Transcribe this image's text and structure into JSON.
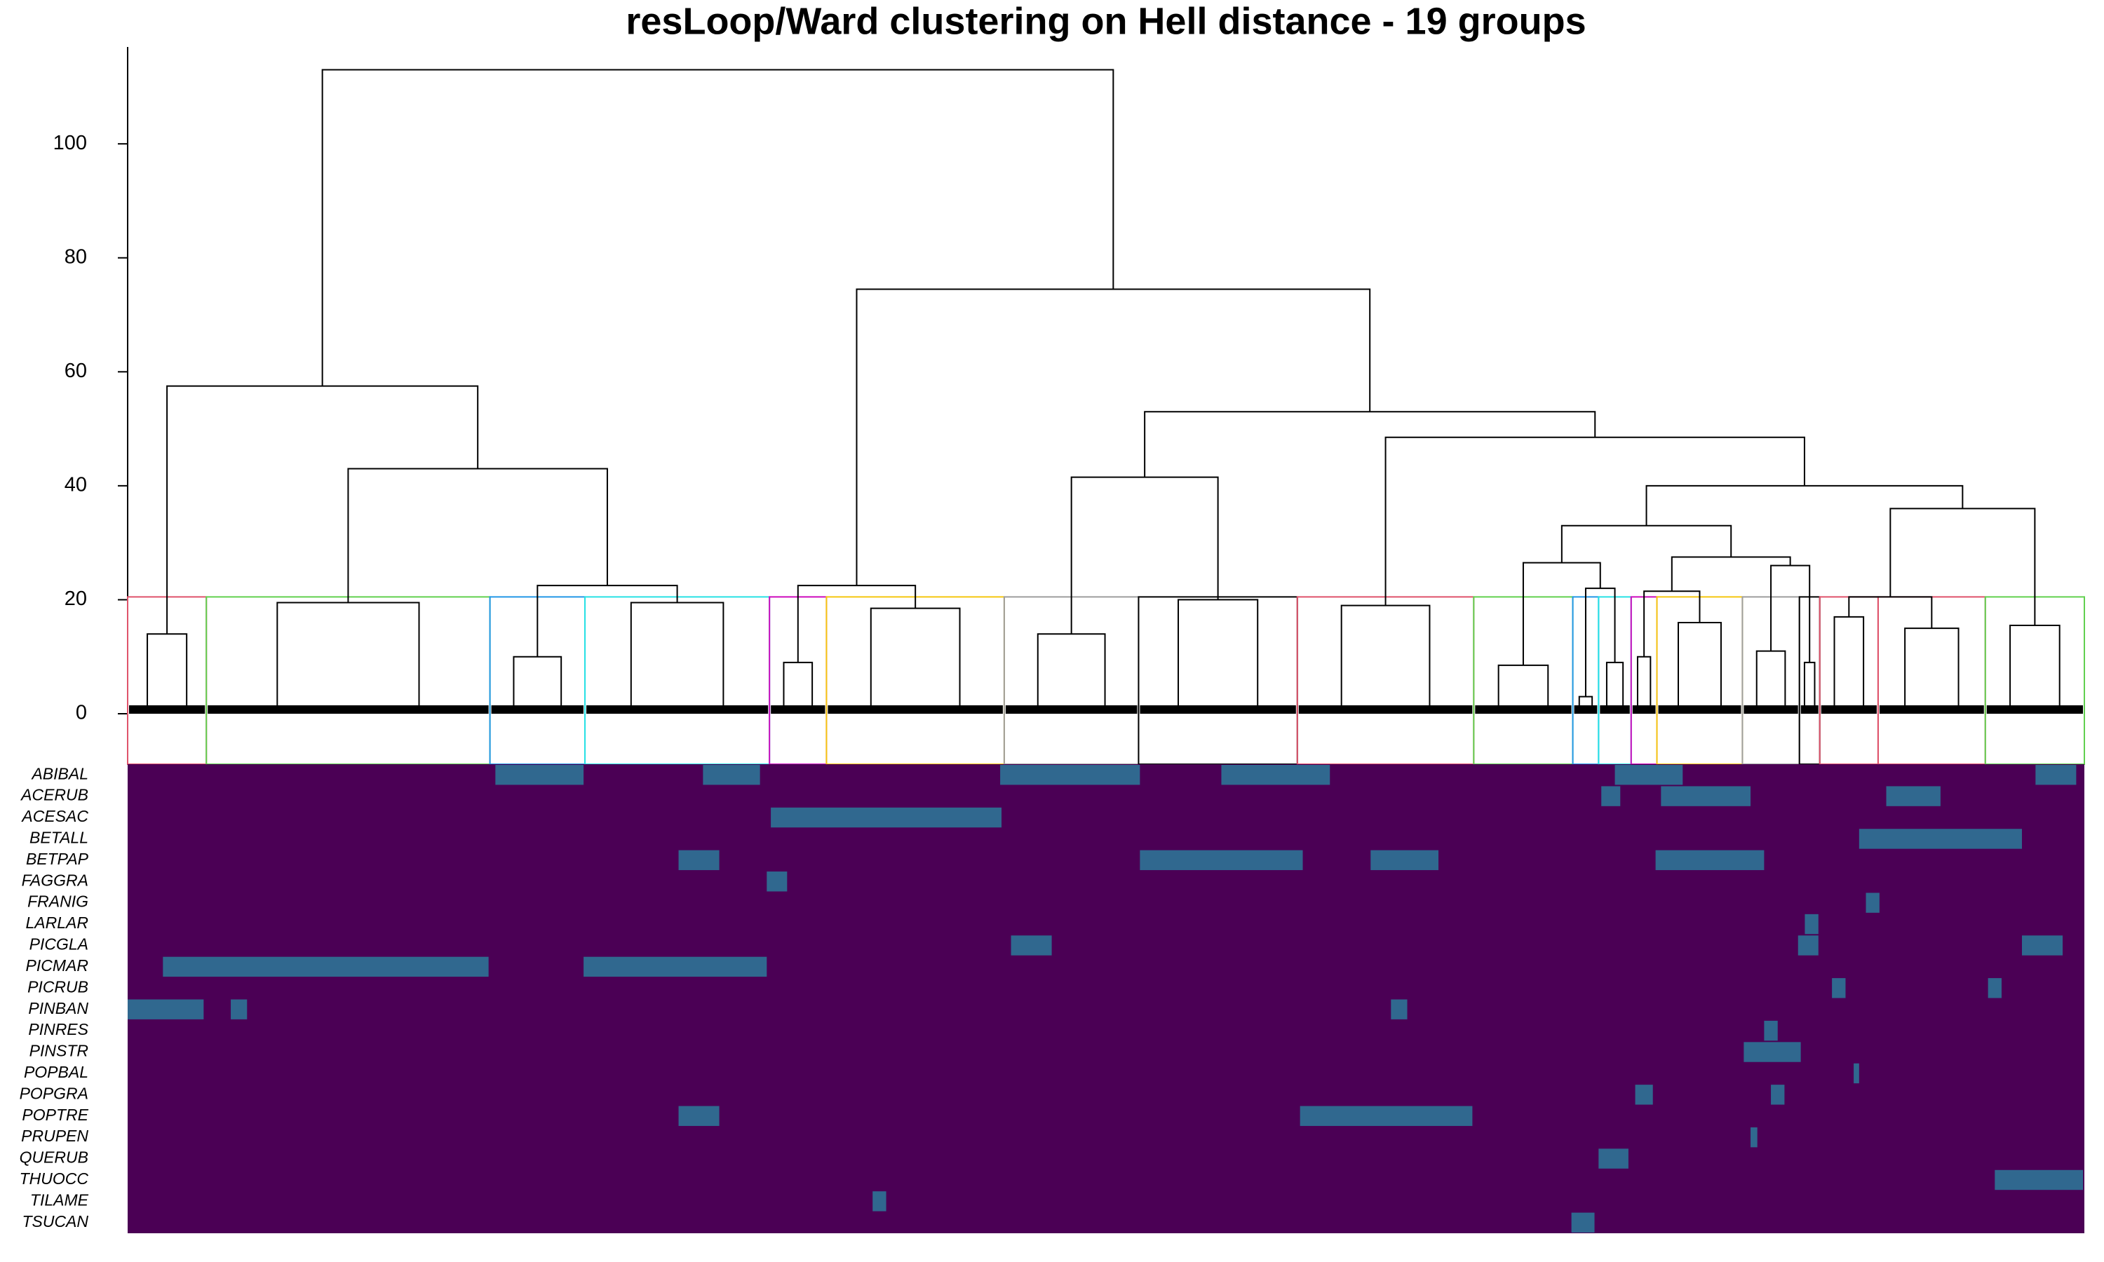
{
  "chart_data": {
    "type": "dendrogram",
    "title": "resLoop/Ward clustering on Hell distance - 19 groups",
    "ylim": [
      0,
      117
    ],
    "yticks": [
      0,
      20,
      40,
      60,
      80,
      100
    ],
    "cut_height": 20.5,
    "groups": [
      {
        "size": 58,
        "height": 14,
        "color": "#DF536B"
      },
      {
        "size": 209,
        "height": 19.5,
        "color": "#61D04F"
      },
      {
        "size": 70,
        "height": 10,
        "color": "#2297E6"
      },
      {
        "size": 136,
        "height": 19.5,
        "color": "#28E2E5"
      },
      {
        "size": 42,
        "height": 9,
        "color": "#CD0BBC"
      },
      {
        "size": 131,
        "height": 18.5,
        "color": "#F5C710"
      },
      {
        "size": 99,
        "height": 14,
        "color": "#9E9E9E"
      },
      {
        "size": 117,
        "height": 20,
        "color": "#000000"
      },
      {
        "size": 130,
        "height": 19,
        "color": "#DF536B"
      },
      {
        "size": 73,
        "height": 8.5,
        "color": "#61D04F"
      },
      {
        "size": 19,
        "height": 3,
        "color": "#2297E6"
      },
      {
        "size": 24,
        "height": 9,
        "color": "#28E2E5"
      },
      {
        "size": 19,
        "height": 10,
        "color": "#CD0BBC"
      },
      {
        "size": 63,
        "height": 16,
        "color": "#F5C710"
      },
      {
        "size": 42,
        "height": 11,
        "color": "#9E9E9E"
      },
      {
        "size": 15,
        "height": 9,
        "color": "#000000"
      },
      {
        "size": 43,
        "height": 17,
        "color": "#DF536B"
      },
      {
        "size": 79,
        "height": 15,
        "color": "#DF536B"
      },
      {
        "size": 73,
        "height": 15.5,
        "color": "#61D04F"
      }
    ],
    "merges": [
      {
        "left": 4,
        "right": 5,
        "height": 22.5
      },
      {
        "left": 2,
        "right": 3,
        "height": 22.5
      },
      {
        "left": 1,
        "right": 20,
        "height": 43
      },
      {
        "left": 0,
        "right": 21,
        "height": 57.5
      },
      {
        "left": 6,
        "right": 7,
        "height": 41.5
      },
      {
        "left": 10,
        "right": 11,
        "height": 22
      },
      {
        "left": 9,
        "right": 24,
        "height": 26.5
      },
      {
        "left": 12,
        "right": 13,
        "height": 21.5
      },
      {
        "left": 14,
        "right": 15,
        "height": 26
      },
      {
        "left": 26,
        "right": 27,
        "height": 27.5
      },
      {
        "left": 25,
        "right": 28,
        "height": 33
      },
      {
        "left": 16,
        "right": 17,
        "height": 20.5
      },
      {
        "left": 30,
        "right": 18,
        "height": 36
      },
      {
        "left": 29,
        "right": 31,
        "height": 40
      },
      {
        "left": 8,
        "right": 32,
        "height": 48.5
      },
      {
        "left": 23,
        "right": 33,
        "height": 53
      },
      {
        "left": 19,
        "right": 34,
        "height": 74.5
      },
      {
        "left": 22,
        "right": 35,
        "height": 113
      }
    ],
    "heatmap": {
      "base_color": "#4B0055",
      "high_color": "#2C7A9A",
      "rows": [
        {
          "name": "ABIBAL",
          "bands": [
            [
              271,
              336
            ],
            [
              424,
              466
            ],
            [
              643,
              746
            ],
            [
              806,
              886
            ],
            [
              1096,
              1146
            ],
            [
              1406,
              1436
            ]
          ]
        },
        {
          "name": "ACERUB",
          "bands": [
            [
              1086,
              1100
            ],
            [
              1130,
              1196
            ],
            [
              1296,
              1336
            ]
          ]
        },
        {
          "name": "ACESAC",
          "bands": [
            [
              474,
              644
            ]
          ]
        },
        {
          "name": "BETALL",
          "bands": [
            [
              1276,
              1396
            ]
          ]
        },
        {
          "name": "BETPAP",
          "bands": [
            [
              406,
              436
            ],
            [
              746,
              866
            ],
            [
              916,
              966
            ],
            [
              1126,
              1206
            ]
          ]
        },
        {
          "name": "FAGGRA",
          "bands": [
            [
              471,
              486
            ]
          ]
        },
        {
          "name": "FRANIG",
          "bands": [
            [
              1281,
              1291
            ]
          ]
        },
        {
          "name": "LARLAR",
          "bands": [
            [
              1236,
              1246
            ]
          ]
        },
        {
          "name": "PICGLA",
          "bands": [
            [
              651,
              681
            ],
            [
              1231,
              1246
            ],
            [
              1396,
              1426
            ]
          ]
        },
        {
          "name": "PICMAR",
          "bands": [
            [
              26,
              266
            ],
            [
              336,
              471
            ]
          ]
        },
        {
          "name": "PICRUB",
          "bands": [
            [
              1256,
              1266
            ],
            [
              1371,
              1381
            ]
          ]
        },
        {
          "name": "PINBAN",
          "bands": [
            [
              0,
              56
            ],
            [
              76,
              88
            ],
            [
              931,
              943
            ]
          ]
        },
        {
          "name": "PINRES",
          "bands": [
            [
              1206,
              1216
            ]
          ]
        },
        {
          "name": "PINSTR",
          "bands": [
            [
              1191,
              1233
            ]
          ]
        },
        {
          "name": "POPBAL",
          "bands": [
            [
              1272,
              1276
            ]
          ]
        },
        {
          "name": "POPGRA",
          "bands": [
            [
              1111,
              1124
            ],
            [
              1211,
              1221
            ]
          ]
        },
        {
          "name": "POPTRE",
          "bands": [
            [
              406,
              436
            ],
            [
              864,
              991
            ]
          ]
        },
        {
          "name": "PRUPEN",
          "bands": [
            [
              1196,
              1201
            ]
          ]
        },
        {
          "name": "QUERUB",
          "bands": [
            [
              1084,
              1106
            ]
          ]
        },
        {
          "name": "THUOCC",
          "bands": [
            [
              1376,
              1441
            ]
          ]
        },
        {
          "name": "TILAME",
          "bands": [
            [
              549,
              559
            ]
          ]
        },
        {
          "name": "TSUCAN",
          "bands": [
            [
              1064,
              1081
            ]
          ]
        }
      ]
    }
  }
}
